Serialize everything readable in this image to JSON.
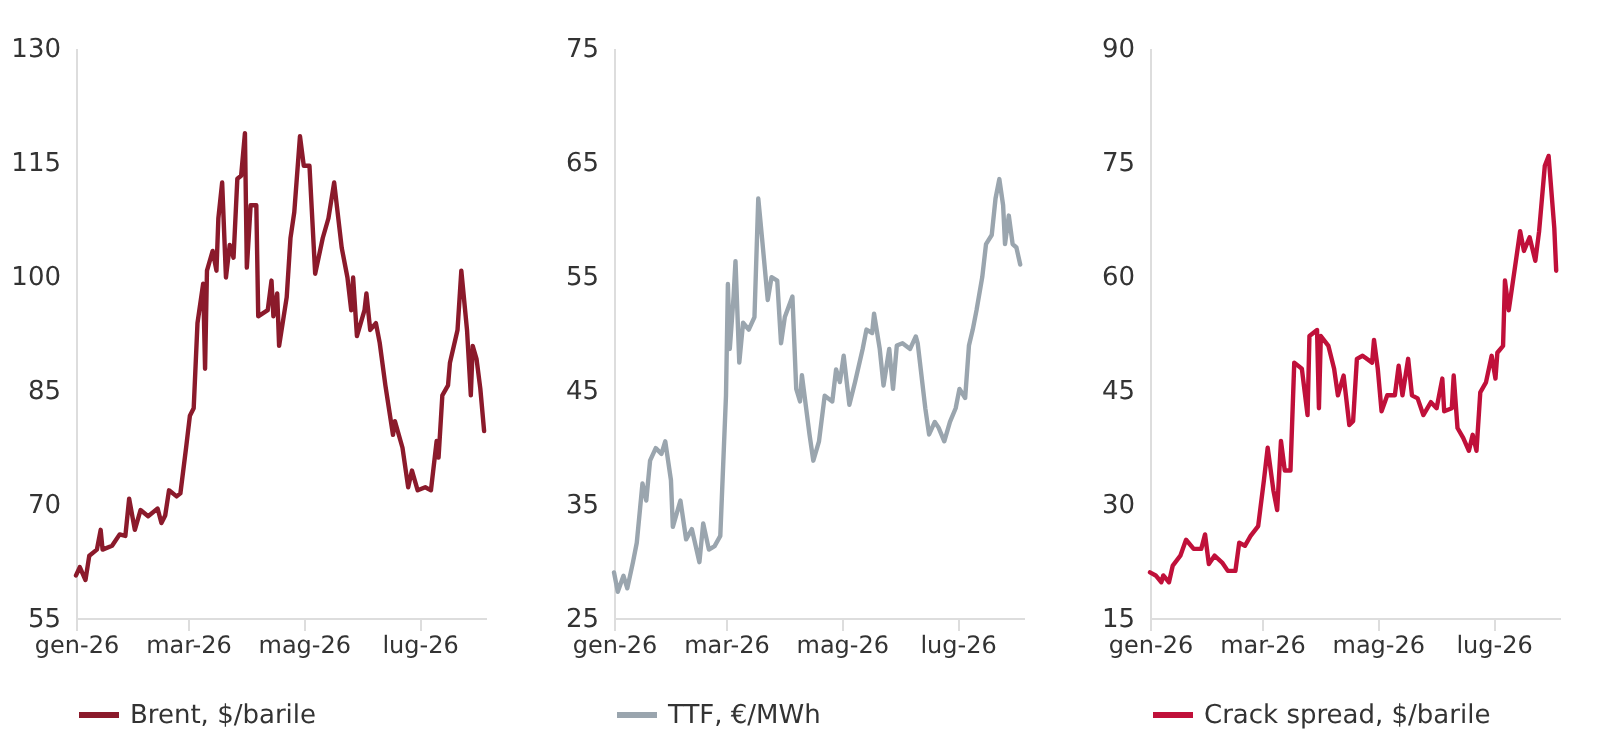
{
  "chart_data": [
    {
      "type": "line",
      "x": [
        "2026-01-01",
        "2026-01-03",
        "2026-01-06",
        "2026-01-08",
        "2026-01-12",
        "2026-01-14",
        "2026-01-15",
        "2026-01-20",
        "2026-01-24",
        "2026-01-27",
        "2026-01-29",
        "2026-02-01",
        "2026-02-04",
        "2026-02-08",
        "2026-02-13",
        "2026-02-15",
        "2026-02-17",
        "2026-02-19",
        "2026-02-23",
        "2026-02-25",
        "2026-02-28",
        "2026-03-02",
        "2026-03-04",
        "2026-03-06",
        "2026-03-09",
        "2026-03-10",
        "2026-03-11",
        "2026-03-14",
        "2026-03-16",
        "2026-03-17",
        "2026-03-19",
        "2026-03-21",
        "2026-03-23",
        "2026-03-25",
        "2026-03-27",
        "2026-03-29",
        "2026-03-31",
        "2026-04-01",
        "2026-04-03",
        "2026-04-06",
        "2026-04-07",
        "2026-04-12",
        "2026-04-14",
        "2026-04-15",
        "2026-04-17",
        "2026-04-18",
        "2026-04-22",
        "2026-04-24",
        "2026-04-26",
        "2026-04-29",
        "2026-05-01",
        "2026-05-04",
        "2026-05-07",
        "2026-05-11",
        "2026-05-14",
        "2026-05-17",
        "2026-05-21",
        "2026-05-24",
        "2026-05-26",
        "2026-05-27",
        "2026-05-29",
        "2026-06-02",
        "2026-06-03",
        "2026-06-05",
        "2026-06-08",
        "2026-06-10",
        "2026-06-13",
        "2026-06-17",
        "2026-06-18",
        "2026-06-22",
        "2026-06-25",
        "2026-06-27",
        "2026-06-30",
        "2026-07-04",
        "2026-07-07",
        "2026-07-10",
        "2026-07-11",
        "2026-07-13",
        "2026-07-16",
        "2026-07-17",
        "2026-07-21",
        "2026-07-23",
        "2026-07-26",
        "2026-07-28",
        "2026-07-29",
        "2026-07-31",
        "2026-08-02",
        "2026-08-04"
      ],
      "series": [
        {
          "name": "Brent, $/barile",
          "color": "#8b1a2b",
          "values": [
            60.6,
            61.7,
            60,
            63.2,
            64,
            66.6,
            64,
            64.5,
            66,
            65.8,
            70.7,
            66.6,
            69.2,
            68.4,
            69.4,
            67.5,
            68.5,
            71.8,
            71,
            71.4,
            77.4,
            81.6,
            82.6,
            93.8,
            99,
            87.8,
            100.7,
            103.3,
            100.7,
            107.6,
            112.3,
            99.8,
            104.1,
            102.4,
            112.8,
            113.2,
            118.8,
            101.1,
            109.3,
            109.3,
            94.7,
            95.5,
            99.4,
            94.7,
            97.7,
            90.8,
            97.2,
            105,
            108.4,
            118.4,
            114.5,
            114.5,
            100.3,
            105,
            107.6,
            112.3,
            103.7,
            99.8,
            95.5,
            99.8,
            92.1,
            95.5,
            97.7,
            92.9,
            93.8,
            91.2,
            85.6,
            79.1,
            80.9,
            77.4,
            72.2,
            74.4,
            71.8,
            72.2,
            71.8,
            78.3,
            76.1,
            84.3,
            85.6,
            88.6,
            92.9,
            100.7,
            92.9,
            84.3,
            90.8,
            89.1,
            85.2,
            79.6
          ]
        }
      ],
      "xlim": [
        "2026-01-01",
        "2026-08-05"
      ],
      "xticks": [
        {
          "value": "2026-01-01",
          "label": "gen-26"
        },
        {
          "value": "2026-03-01",
          "label": "mar-26"
        },
        {
          "value": "2026-05-01",
          "label": "mag-26"
        },
        {
          "value": "2026-07-01",
          "label": "lug-26"
        }
      ],
      "ylim": [
        55,
        130
      ],
      "yticks": [
        55,
        70,
        85,
        100,
        115,
        130
      ],
      "legend": "bottom",
      "grid": false
    },
    {
      "type": "line",
      "x": [
        "2026-01-01",
        "2026-01-03",
        "2026-01-06",
        "2026-01-08",
        "2026-01-11",
        "2026-01-13",
        "2026-01-16",
        "2026-01-18",
        "2026-01-20",
        "2026-01-23",
        "2026-01-26",
        "2026-01-28",
        "2026-01-31",
        "2026-02-01",
        "2026-02-05",
        "2026-02-08",
        "2026-02-11",
        "2026-02-15",
        "2026-02-17",
        "2026-02-20",
        "2026-02-23",
        "2026-02-26",
        "2026-03-01",
        "2026-03-02",
        "2026-03-03",
        "2026-03-05",
        "2026-03-06",
        "2026-03-08",
        "2026-03-10",
        "2026-03-13",
        "2026-03-16",
        "2026-03-18",
        "2026-03-20",
        "2026-03-23",
        "2026-03-25",
        "2026-03-28",
        "2026-03-30",
        "2026-04-01",
        "2026-04-05",
        "2026-04-07",
        "2026-04-09",
        "2026-04-10",
        "2026-04-14",
        "2026-04-16",
        "2026-04-19",
        "2026-04-22",
        "2026-04-26",
        "2026-04-28",
        "2026-04-30",
        "2026-05-02",
        "2026-05-05",
        "2026-05-08",
        "2026-05-12",
        "2026-05-14",
        "2026-05-17",
        "2026-05-18",
        "2026-05-21",
        "2026-05-23",
        "2026-05-26",
        "2026-05-28",
        "2026-05-30",
        "2026-06-02",
        "2026-06-06",
        "2026-06-09",
        "2026-06-10",
        "2026-06-14",
        "2026-06-16",
        "2026-06-19",
        "2026-06-21",
        "2026-06-24",
        "2026-06-27",
        "2026-06-30",
        "2026-07-02",
        "2026-07-05",
        "2026-07-07",
        "2026-07-09",
        "2026-07-11",
        "2026-07-14",
        "2026-07-16",
        "2026-07-19",
        "2026-07-21",
        "2026-07-23",
        "2026-07-25",
        "2026-07-26",
        "2026-07-28",
        "2026-07-30",
        "2026-08-01",
        "2026-08-03"
      ],
      "series": [
        {
          "name": "TTF, €/MWh",
          "color": "#9aa5ae",
          "values": [
            29,
            27.3,
            28.7,
            27.6,
            29.9,
            31.6,
            36.8,
            35.3,
            38.8,
            39.9,
            39.4,
            40.5,
            37.1,
            33,
            35.3,
            31.9,
            32.8,
            29.9,
            33.3,
            31,
            31.3,
            32.2,
            44.5,
            54.3,
            48.6,
            53.2,
            56.3,
            47.4,
            50.9,
            50.3,
            51.4,
            61.8,
            58.3,
            52.9,
            54.9,
            54.6,
            49.1,
            51.4,
            53.2,
            45.1,
            44,
            46.3,
            41.1,
            38.8,
            40.5,
            44.5,
            44,
            46.8,
            45.7,
            48,
            43.7,
            45.7,
            48.6,
            50.3,
            50,
            51.7,
            48.6,
            45.4,
            48.6,
            45.1,
            48.9,
            49.1,
            48.6,
            49.7,
            49.1,
            43.4,
            41.1,
            42.2,
            41.7,
            40.5,
            42.2,
            43.4,
            45.1,
            44.3,
            48.9,
            50.3,
            52,
            54.9,
            57.8,
            58.6,
            61.8,
            63.5,
            61.2,
            57.8,
            60.3,
            57.8,
            57.5,
            56
          ]
        }
      ],
      "xlim": [
        "2026-01-01",
        "2026-08-05"
      ],
      "xticks": [
        {
          "value": "2026-01-01",
          "label": "gen-26"
        },
        {
          "value": "2026-03-01",
          "label": "mar-26"
        },
        {
          "value": "2026-05-01",
          "label": "mag-26"
        },
        {
          "value": "2026-07-01",
          "label": "lug-26"
        }
      ],
      "ylim": [
        25,
        75
      ],
      "yticks": [
        25,
        35,
        45,
        55,
        65,
        75
      ],
      "legend": "bottom",
      "grid": false
    },
    {
      "type": "line",
      "x": [
        "2026-01-01",
        "2026-01-04",
        "2026-01-07",
        "2026-01-08",
        "2026-01-11",
        "2026-01-13",
        "2026-01-17",
        "2026-01-20",
        "2026-01-24",
        "2026-01-28",
        "2026-01-30",
        "2026-02-01",
        "2026-02-04",
        "2026-02-08",
        "2026-02-11",
        "2026-02-15",
        "2026-02-17",
        "2026-02-20",
        "2026-02-23",
        "2026-02-27",
        "2026-03-02",
        "2026-03-04",
        "2026-03-07",
        "2026-03-09",
        "2026-03-11",
        "2026-03-13",
        "2026-03-16",
        "2026-03-18",
        "2026-03-22",
        "2026-03-25",
        "2026-03-26",
        "2026-03-30",
        "2026-03-31",
        "2026-04-01",
        "2026-04-05",
        "2026-04-08",
        "2026-04-10",
        "2026-04-13",
        "2026-04-16",
        "2026-04-18",
        "2026-04-20",
        "2026-04-23",
        "2026-04-28",
        "2026-04-29",
        "2026-05-01",
        "2026-05-03",
        "2026-05-06",
        "2026-05-10",
        "2026-05-12",
        "2026-05-14",
        "2026-05-17",
        "2026-05-19",
        "2026-05-22",
        "2026-05-25",
        "2026-05-29",
        "2026-06-01",
        "2026-06-04",
        "2026-06-05",
        "2026-06-09",
        "2026-06-10",
        "2026-06-12",
        "2026-06-15",
        "2026-06-18",
        "2026-06-20",
        "2026-06-22",
        "2026-06-24",
        "2026-06-27",
        "2026-06-30",
        "2026-07-02",
        "2026-07-03",
        "2026-07-06",
        "2026-07-07",
        "2026-07-09",
        "2026-07-13",
        "2026-07-15",
        "2026-07-17",
        "2026-07-20",
        "2026-07-23",
        "2026-07-25",
        "2026-07-28",
        "2026-07-30",
        "2026-08-02",
        "2026-08-03"
      ],
      "series": [
        {
          "name": "Crack spread, $/barile",
          "color": "#c0103a",
          "values": [
            21,
            20.6,
            19.7,
            20.6,
            19.7,
            21.9,
            23.2,
            25.3,
            24.1,
            24.1,
            26,
            22.1,
            23.2,
            22.3,
            21.2,
            21.2,
            24.9,
            24.5,
            25.8,
            27.1,
            33.1,
            37.4,
            31.8,
            29.2,
            38.3,
            34.4,
            34.4,
            48.6,
            47.8,
            41.7,
            52.1,
            52.9,
            42.6,
            52.1,
            50.8,
            47.8,
            44.3,
            46.9,
            40.4,
            40.9,
            49.1,
            49.5,
            48.6,
            51.6,
            47.8,
            42.2,
            44.3,
            44.3,
            48.2,
            44.3,
            49.1,
            44.3,
            43.9,
            41.7,
            43.4,
            42.6,
            46.5,
            42.2,
            42.6,
            46.9,
            40,
            38.7,
            37,
            39.1,
            37,
            44.7,
            46,
            49.5,
            46.5,
            49.9,
            50.8,
            59.4,
            55.5,
            62.4,
            65.9,
            63.3,
            65.1,
            62,
            65.9,
            74.5,
            75.8,
            66.3,
            60.7
          ]
        }
      ],
      "xlim": [
        "2026-01-01",
        "2026-08-05"
      ],
      "xticks": [
        {
          "value": "2026-01-01",
          "label": "gen-26"
        },
        {
          "value": "2026-03-01",
          "label": "mar-26"
        },
        {
          "value": "2026-05-01",
          "label": "mag-26"
        },
        {
          "value": "2026-07-01",
          "label": "lug-26"
        }
      ],
      "ylim": [
        15,
        90
      ],
      "yticks": [
        15,
        30,
        45,
        60,
        75,
        90
      ],
      "legend": "bottom",
      "grid": false
    }
  ]
}
